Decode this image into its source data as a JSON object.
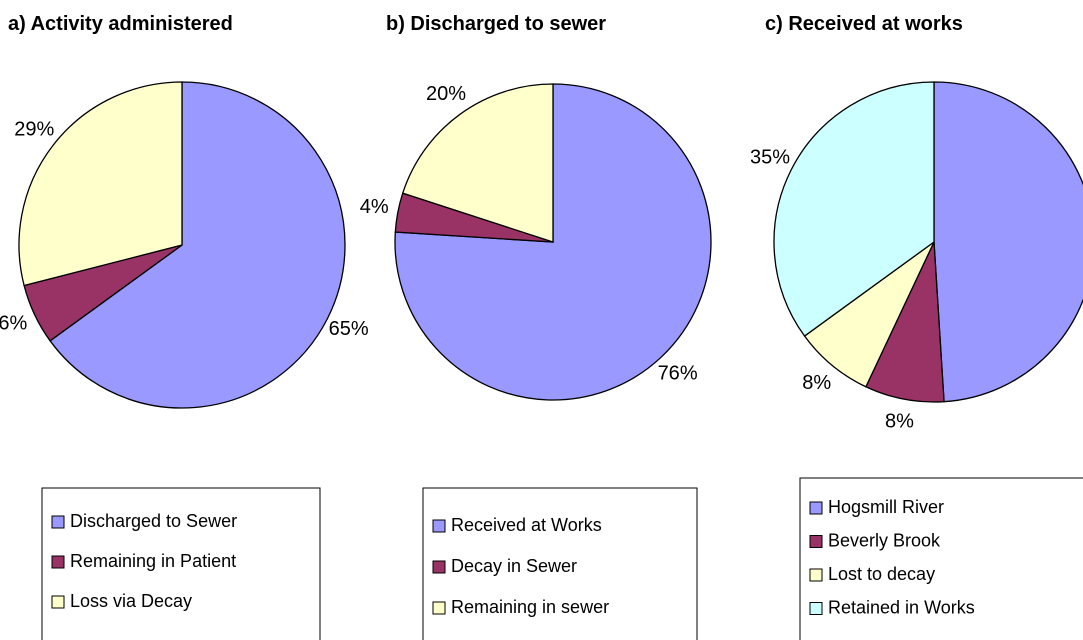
{
  "chart_data": [
    {
      "type": "pie",
      "title": "a) Activity administered",
      "categories": [
        "Discharged to Sewer",
        "Remaining in Patient",
        "Loss via Decay"
      ],
      "values": [
        65,
        6,
        29
      ],
      "colors": [
        "#9999ff",
        "#993366",
        "#ffffcc"
      ],
      "legend": "bottom"
    },
    {
      "type": "pie",
      "title": "b) Discharged to sewer",
      "categories": [
        "Received at Works",
        "Decay in Sewer",
        "Remaining in sewer"
      ],
      "values": [
        76,
        4,
        20
      ],
      "colors": [
        "#9999ff",
        "#993366",
        "#ffffcc"
      ],
      "legend": "bottom"
    },
    {
      "type": "pie",
      "title": "c) Received at works",
      "categories": [
        "Hogsmill River",
        "Beverly Brook",
        "Lost to decay",
        "Retained in Works"
      ],
      "values": [
        49,
        8,
        8,
        35
      ],
      "colors": [
        "#9999ff",
        "#993366",
        "#ffffcc",
        "#ccffff"
      ],
      "legend": "bottom"
    }
  ]
}
